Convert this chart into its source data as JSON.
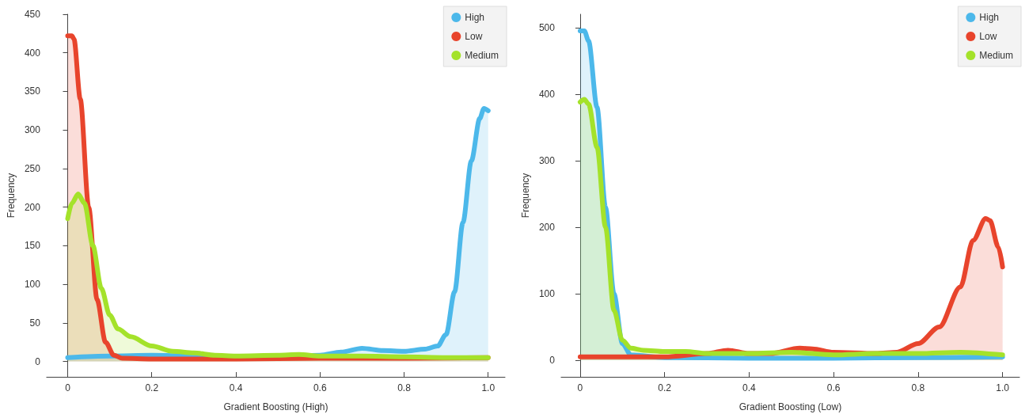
{
  "chart_data": [
    {
      "type": "area",
      "xlabel": "Gradient Boosting (High)",
      "ylabel": "Frequency",
      "xlim": [
        -0.05,
        1.04
      ],
      "ylim": [
        -20,
        450
      ],
      "xticks": [
        0,
        0.2,
        0.4,
        0.6,
        0.8,
        {
          "value": 1,
          "label": "1.0"
        }
      ],
      "yticks": [
        0,
        50,
        100,
        150,
        200,
        250,
        300,
        350,
        400,
        450
      ],
      "legend": "top right",
      "marker": "none",
      "line_style": "solid",
      "series": [
        {
          "name": "High",
          "color": "#4cb8ea",
          "x": [
            0,
            0.1,
            0.2,
            0.3,
            0.4,
            0.5,
            0.6,
            0.65,
            0.7,
            0.75,
            0.8,
            0.85,
            0.88,
            0.9,
            0.92,
            0.94,
            0.96,
            0.98,
            0.99,
            1.0
          ],
          "values": [
            5,
            7,
            8,
            7,
            6,
            6,
            8,
            12,
            17,
            14,
            13,
            16,
            20,
            35,
            90,
            180,
            260,
            315,
            328,
            325
          ]
        },
        {
          "name": "Low",
          "color": "#e8442c",
          "x": [
            0,
            0.01,
            0.015,
            0.03,
            0.05,
            0.07,
            0.09,
            0.11,
            0.13,
            0.2,
            0.4,
            0.6,
            0.8,
            1.0
          ],
          "values": [
            422,
            422,
            418,
            340,
            200,
            80,
            25,
            8,
            4,
            3,
            3,
            4,
            4,
            5
          ]
        },
        {
          "name": "Medium",
          "color": "#a4e22a",
          "x": [
            0,
            0.01,
            0.025,
            0.04,
            0.06,
            0.08,
            0.1,
            0.12,
            0.15,
            0.2,
            0.25,
            0.3,
            0.35,
            0.4,
            0.5,
            0.55,
            0.6,
            0.7,
            0.8,
            0.9,
            1.0
          ],
          "values": [
            185,
            205,
            217,
            205,
            150,
            95,
            60,
            42,
            32,
            20,
            13,
            11,
            8,
            7,
            8,
            9,
            7,
            7,
            6,
            5,
            5
          ]
        }
      ]
    },
    {
      "type": "area",
      "xlabel": "Gradient Boosting (Low)",
      "ylabel": "Frequency",
      "xlim": [
        -0.045,
        1.04
      ],
      "ylim": [
        -25,
        520
      ],
      "xticks": [
        0,
        0.2,
        0.4,
        0.6,
        0.8,
        {
          "value": 1,
          "label": "1.0"
        }
      ],
      "yticks": [
        0,
        100,
        200,
        300,
        400,
        500
      ],
      "legend": "top right",
      "marker": "none",
      "line_style": "solid",
      "series": [
        {
          "name": "High",
          "color": "#4cb8ea",
          "x": [
            0,
            0.01,
            0.02,
            0.04,
            0.06,
            0.08,
            0.1,
            0.12,
            0.2,
            0.4,
            0.6,
            0.8,
            1.0
          ],
          "values": [
            495,
            495,
            480,
            380,
            230,
            100,
            25,
            8,
            4,
            3,
            3,
            4,
            5
          ]
        },
        {
          "name": "Low",
          "color": "#e8442c",
          "x": [
            0,
            0.2,
            0.3,
            0.35,
            0.4,
            0.45,
            0.52,
            0.55,
            0.6,
            0.7,
            0.75,
            0.8,
            0.85,
            0.9,
            0.93,
            0.96,
            0.97,
            0.99,
            1.0
          ],
          "values": [
            5,
            5,
            10,
            15,
            10,
            10,
            18,
            17,
            12,
            10,
            12,
            25,
            50,
            110,
            180,
            213,
            210,
            170,
            140
          ]
        },
        {
          "name": "Medium",
          "color": "#a4e22a",
          "x": [
            0,
            0.01,
            0.02,
            0.04,
            0.06,
            0.08,
            0.1,
            0.12,
            0.15,
            0.2,
            0.25,
            0.3,
            0.4,
            0.5,
            0.6,
            0.7,
            0.8,
            0.9,
            1.0
          ],
          "values": [
            388,
            392,
            385,
            320,
            200,
            75,
            30,
            18,
            15,
            13,
            13,
            10,
            10,
            12,
            8,
            10,
            10,
            12,
            8
          ]
        }
      ]
    }
  ]
}
